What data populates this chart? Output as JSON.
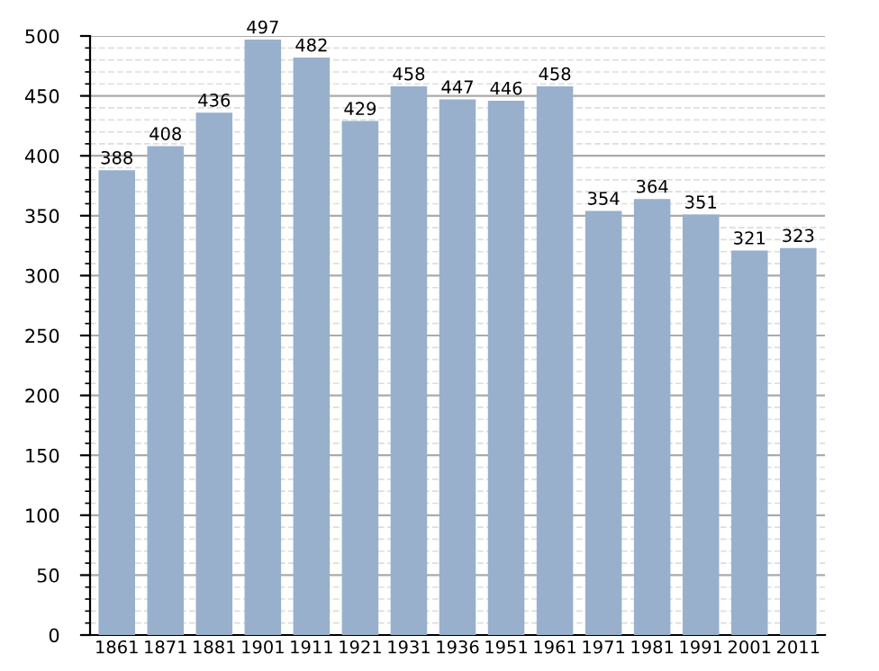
{
  "chart_data": {
    "type": "bar",
    "categories": [
      "1861",
      "1871",
      "1881",
      "1901",
      "1911",
      "1921",
      "1931",
      "1936",
      "1951",
      "1961",
      "1971",
      "1981",
      "1991",
      "2001",
      "2011"
    ],
    "values": [
      388,
      408,
      436,
      497,
      482,
      429,
      458,
      447,
      446,
      458,
      354,
      364,
      351,
      321,
      323
    ],
    "color": "#98b0cc",
    "ylim": [
      0,
      500
    ],
    "yticks": [
      0,
      50,
      100,
      150,
      200,
      250,
      300,
      350,
      400,
      450,
      500
    ],
    "grid": "y",
    "data_labels": true
  }
}
